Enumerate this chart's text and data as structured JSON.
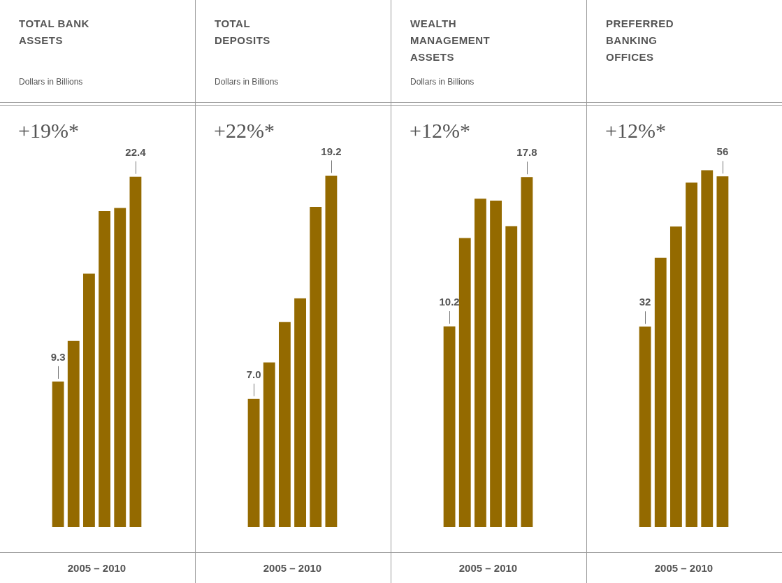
{
  "chart_data": [
    {
      "type": "bar",
      "title": "TOTAL BANK ASSETS",
      "subtitle": "Dollars in Billions",
      "xlabel": "2005 – 2010",
      "annotations": [
        "+19%*"
      ],
      "categories": [
        null,
        null,
        null,
        null,
        null,
        null
      ],
      "values": [
        9.3,
        11.9,
        16.2,
        20.2,
        20.4,
        22.4
      ],
      "value_labels": [
        "9.3",
        null,
        null,
        null,
        null,
        "22.4"
      ],
      "color": "#946a00",
      "ylim": [
        0,
        26.9
      ],
      "tick_labels": false
    },
    {
      "type": "bar",
      "title": "TOTAL DEPOSITS",
      "subtitle": "Dollars in Billions",
      "xlabel": "2005 – 2010",
      "annotations": [
        "+22%*"
      ],
      "categories": [
        null,
        null,
        null,
        null,
        null,
        null
      ],
      "values": [
        7.0,
        9.0,
        11.2,
        12.5,
        17.5,
        19.2
      ],
      "value_labels": [
        "7.0",
        null,
        null,
        null,
        null,
        "19.2"
      ],
      "color": "#946a00",
      "ylim": [
        0,
        23.0
      ],
      "tick_labels": false
    },
    {
      "type": "bar",
      "title": "WEALTH MANAGEMENT ASSETS",
      "subtitle": "Dollars in Billions",
      "xlabel": "2005 – 2010",
      "annotations": [
        "+12%*"
      ],
      "categories": [
        null,
        null,
        null,
        null,
        null,
        null
      ],
      "values": [
        10.2,
        14.7,
        16.7,
        16.6,
        15.3,
        17.8
      ],
      "value_labels": [
        "10.2",
        null,
        null,
        null,
        null,
        "17.8"
      ],
      "color": "#946a00",
      "ylim": [
        0,
        21.4
      ],
      "tick_labels": false
    },
    {
      "type": "bar",
      "title": "PREFERRED BANKING OFFICES",
      "xlabel": "2005 – 2010",
      "annotations": [
        "+12%*"
      ],
      "categories": [
        null,
        null,
        null,
        null,
        null,
        null
      ],
      "values": [
        32,
        43,
        48,
        55,
        57,
        56
      ],
      "value_labels": [
        "32",
        null,
        null,
        null,
        null,
        "56"
      ],
      "color": "#946a00",
      "ylim": [
        0,
        67.2
      ],
      "tick_labels": false
    }
  ]
}
